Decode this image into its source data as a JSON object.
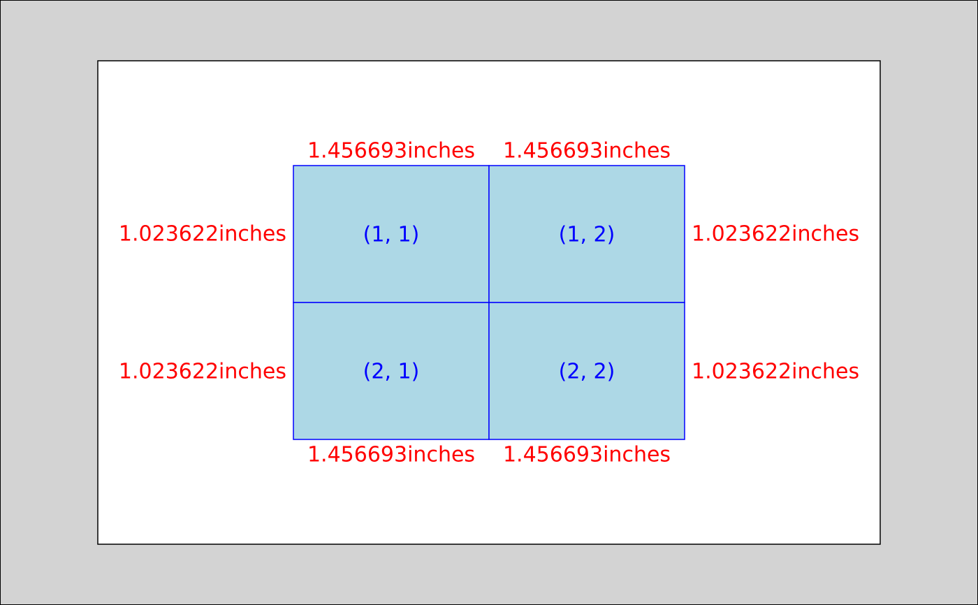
{
  "colors": {
    "background": "#d3d3d3",
    "page": "#ffffff",
    "page_border": "#000000",
    "cell_fill": "#add8e6",
    "cell_border": "#0000ff",
    "cell_label": "#0000ff",
    "dimension_label": "#ff0000"
  },
  "layout": {
    "rows": 2,
    "cols": 2
  },
  "cells": [
    {
      "row": 1,
      "col": 1,
      "label": "(1, 1)"
    },
    {
      "row": 1,
      "col": 2,
      "label": "(1, 2)"
    },
    {
      "row": 2,
      "col": 1,
      "label": "(2, 1)"
    },
    {
      "row": 2,
      "col": 2,
      "label": "(2, 2)"
    }
  ],
  "column_widths": {
    "top": [
      "1.456693inches",
      "1.456693inches"
    ],
    "bottom": [
      "1.456693inches",
      "1.456693inches"
    ]
  },
  "row_heights": {
    "left": [
      "1.023622inches",
      "1.023622inches"
    ],
    "right": [
      "1.023622inches",
      "1.023622inches"
    ]
  }
}
